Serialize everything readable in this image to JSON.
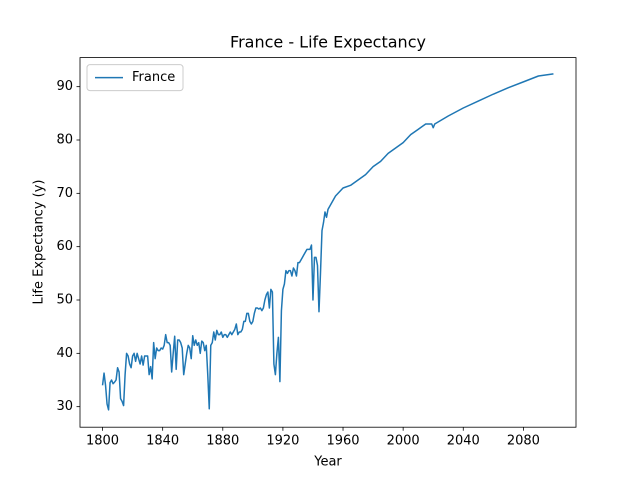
{
  "chart_data": {
    "type": "line",
    "title": "France - Life Expectancy",
    "xlabel": "Year",
    "ylabel": "Life Expectancy (y)",
    "x": [
      1800,
      1801,
      1802,
      1803,
      1804,
      1805,
      1806,
      1807,
      1808,
      1809,
      1810,
      1811,
      1812,
      1813,
      1814,
      1815,
      1816,
      1817,
      1818,
      1819,
      1820,
      1821,
      1822,
      1823,
      1824,
      1825,
      1826,
      1827,
      1828,
      1829,
      1830,
      1831,
      1832,
      1833,
      1834,
      1835,
      1836,
      1837,
      1838,
      1839,
      1840,
      1841,
      1842,
      1843,
      1844,
      1845,
      1846,
      1847,
      1848,
      1849,
      1850,
      1851,
      1852,
      1853,
      1854,
      1855,
      1856,
      1857,
      1858,
      1859,
      1860,
      1861,
      1862,
      1863,
      1864,
      1865,
      1866,
      1867,
      1868,
      1869,
      1870,
      1871,
      1872,
      1873,
      1874,
      1875,
      1876,
      1877,
      1878,
      1879,
      1880,
      1881,
      1882,
      1883,
      1884,
      1885,
      1886,
      1887,
      1888,
      1889,
      1890,
      1891,
      1892,
      1893,
      1894,
      1895,
      1896,
      1897,
      1898,
      1899,
      1900,
      1901,
      1902,
      1903,
      1904,
      1905,
      1906,
      1907,
      1908,
      1909,
      1910,
      1911,
      1912,
      1913,
      1914,
      1915,
      1916,
      1917,
      1918,
      1919,
      1920,
      1921,
      1922,
      1923,
      1924,
      1925,
      1926,
      1927,
      1928,
      1929,
      1930,
      1931,
      1932,
      1933,
      1934,
      1935,
      1936,
      1937,
      1938,
      1939,
      1940,
      1941,
      1942,
      1943,
      1944,
      1945,
      1946,
      1947,
      1948,
      1949,
      1950,
      1955,
      1960,
      1965,
      1970,
      1975,
      1980,
      1985,
      1990,
      1995,
      2000,
      2005,
      2010,
      2015,
      2019,
      2020,
      2021,
      2030,
      2040,
      2050,
      2060,
      2070,
      2080,
      2090,
      2100
    ],
    "series": [
      {
        "name": "France",
        "color": "#1f77b4",
        "values": [
          34,
          36.3,
          34,
          30.5,
          29.4,
          34.5,
          35,
          34.3,
          34.6,
          35,
          37.3,
          36.5,
          31.5,
          31,
          30.2,
          36,
          40,
          39.5,
          38,
          37.3,
          39.5,
          40,
          38.5,
          40,
          39,
          38,
          39.5,
          37.8,
          39.5,
          39.5,
          39.5,
          36,
          37.5,
          35.2,
          42,
          39,
          41,
          40.5,
          40.5,
          41,
          40.8,
          41.5,
          43.5,
          42,
          42,
          41.5,
          36.5,
          40,
          43.2,
          37,
          42.5,
          42.5,
          42,
          41,
          36,
          38,
          40,
          41.5,
          41,
          39,
          43.3,
          41.5,
          42.5,
          41.5,
          42,
          40,
          42.3,
          42,
          40.5,
          41.5,
          36,
          29.6,
          41.5,
          42,
          44,
          42.5,
          44.3,
          43.5,
          43.5,
          44,
          43,
          43.5,
          43.5,
          43,
          43.5,
          44,
          43.5,
          44,
          44.5,
          45.5,
          43.5,
          44,
          44,
          44.5,
          46,
          46,
          47.5,
          47.5,
          46,
          45.5,
          46,
          47.5,
          48.5,
          48.5,
          48.3,
          48.5,
          48,
          48.5,
          50,
          51,
          51.5,
          48.5,
          52,
          51.5,
          38,
          36,
          40,
          43,
          34.7,
          48,
          52,
          53,
          55.5,
          55,
          55.5,
          55.5,
          54.5,
          56,
          55.5,
          54.5,
          57,
          57,
          57.5,
          58,
          58.5,
          59,
          59.5,
          59.5,
          59.5,
          60.3,
          50,
          58,
          58,
          56.5,
          47.8,
          55,
          63,
          64.5,
          66.5,
          65.5,
          67,
          69.5,
          71,
          71.5,
          72.5,
          73.5,
          75,
          76,
          77.5,
          78.5,
          79.5,
          81,
          82,
          83,
          83,
          82.3,
          83,
          84.5,
          86,
          87.3,
          88.6,
          89.8,
          90.9,
          92,
          92.4
        ]
      }
    ],
    "xlim": [
      1785,
      2115
    ],
    "ylim": [
      26.15,
      95.45
    ],
    "xticks": [
      1800,
      1840,
      1880,
      1920,
      1960,
      2000,
      2040,
      2080
    ],
    "yticks": [
      30,
      40,
      50,
      60,
      70,
      80,
      90
    ],
    "legend": "upper left"
  }
}
